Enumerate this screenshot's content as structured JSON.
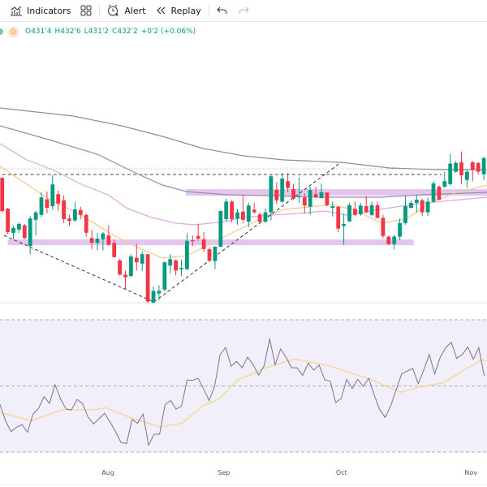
{
  "toolbar": {
    "indicators_label": "Indicators",
    "alert_label": "Alert",
    "replay_label": "Replay",
    "icons": [
      "indicators-icon",
      "layout-grid-icon",
      "alert-clock-icon",
      "replay-rewind-icon",
      "undo-icon",
      "redo-icon"
    ]
  },
  "legend": {
    "interval": "D",
    "open": "O431'4",
    "high": "H432'6",
    "low": "L431'2",
    "close": "C432'2",
    "change": "+0'2 (+0.06%)"
  },
  "colors": {
    "up": "#089981",
    "down": "#f23645",
    "ma_long": "#8f8f8f",
    "ma_mid": "#9c8aa8",
    "ma_short": "#dba9e3",
    "ma_fast": "#f3c98e",
    "zone": "#d9b3ea",
    "rsi": "#7d7198",
    "rsi_ma": "#f2dba0",
    "rsi_bg": "#f1eff9"
  },
  "x_axis": {
    "labels": [
      {
        "label": "Aug",
        "bar": 18.9
      },
      {
        "label": "Sep",
        "bar": 39.6
      },
      {
        "label": "Oct",
        "bar": 60.6
      },
      {
        "label": "Nov",
        "bar": 83.7
      }
    ]
  },
  "chart_data": [
    {
      "type": "candlestick",
      "candles": [
        [
          428.7,
          428.9,
          418.1,
          418.5
        ],
        [
          419.2,
          419.5,
          411.5,
          412.0
        ],
        [
          411.8,
          413.9,
          409.8,
          413.3
        ],
        [
          412.8,
          415.0,
          411.8,
          414.5
        ],
        [
          414.1,
          414.5,
          409.8,
          410.2
        ],
        [
          407.7,
          417.0,
          405.2,
          416.2
        ],
        [
          415.8,
          418.5,
          411.0,
          418.1
        ],
        [
          417.3,
          424.3,
          416.7,
          422.7
        ],
        [
          422.1,
          424.5,
          417.8,
          419.5
        ],
        [
          420.0,
          429.5,
          418.9,
          426.7
        ],
        [
          423.7,
          424.8,
          418.5,
          420.8
        ],
        [
          421.8,
          423.3,
          414.8,
          416.0
        ],
        [
          416.2,
          417.3,
          413.9,
          415.5
        ],
        [
          415.6,
          421.4,
          415.2,
          419.0
        ],
        [
          418.8,
          419.8,
          416.0,
          417.3
        ],
        [
          417.3,
          417.7,
          410.6,
          411.8
        ],
        [
          410.2,
          412.7,
          406.8,
          408.7
        ],
        [
          408.7,
          411.8,
          406.4,
          410.0
        ],
        [
          409.8,
          412.0,
          406.4,
          411.6
        ],
        [
          411.0,
          414.1,
          407.8,
          408.1
        ],
        [
          408.7,
          409.8,
          404.2,
          404.3
        ],
        [
          403.3,
          403.7,
          398.7,
          398.9
        ],
        [
          398.9,
          400.2,
          394.3,
          398.1
        ],
        [
          398.5,
          405.2,
          398.1,
          404.5
        ],
        [
          404.1,
          408.5,
          400.2,
          402.7
        ],
        [
          402.3,
          406.0,
          400.0,
          405.2
        ],
        [
          405.2,
          405.3,
          390.3,
          390.6
        ],
        [
          390.3,
          395.2,
          390.2,
          393.9
        ],
        [
          393.1,
          395.6,
          391.0,
          393.9
        ],
        [
          394.3,
          403.1,
          393.9,
          402.7
        ],
        [
          401.7,
          405.2,
          399.3,
          403.7
        ],
        [
          403.3,
          403.5,
          398.7,
          400.2
        ],
        [
          400.6,
          403.5,
          398.5,
          401.0
        ],
        [
          400.6,
          411.7,
          400.3,
          409.3
        ],
        [
          409.5,
          411.0,
          407.7,
          409.2
        ],
        [
          410.8,
          414.6,
          409.3,
          410.0
        ],
        [
          409.8,
          412.0,
          406.0,
          406.8
        ],
        [
          406.7,
          407.3,
          402.8,
          403.3
        ],
        [
          403.1,
          407.7,
          400.6,
          407.5
        ],
        [
          407.5,
          418.7,
          407.5,
          418.5
        ],
        [
          416.0,
          422.3,
          415.2,
          421.4
        ],
        [
          421.4,
          421.8,
          415.0,
          416.0
        ],
        [
          416.2,
          419.2,
          414.3,
          418.1
        ],
        [
          418.3,
          423.5,
          414.8,
          415.8
        ],
        [
          415.2,
          421.0,
          413.5,
          420.2
        ],
        [
          418.9,
          421.0,
          417.7,
          418.1
        ],
        [
          417.5,
          418.1,
          414.8,
          415.2
        ],
        [
          415.2,
          419.3,
          414.8,
          418.1
        ],
        [
          418.1,
          429.5,
          415.6,
          429.2
        ],
        [
          425.0,
          427.3,
          420.6,
          421.8
        ],
        [
          421.4,
          430.2,
          421.0,
          428.5
        ],
        [
          427.7,
          430.2,
          424.3,
          425.6
        ],
        [
          425.3,
          426.8,
          422.0,
          422.3
        ],
        [
          422.7,
          428.9,
          421.0,
          423.1
        ],
        [
          422.7,
          423.9,
          417.7,
          420.2
        ],
        [
          419.8,
          426.0,
          417.3,
          425.0
        ],
        [
          423.7,
          426.0,
          422.5,
          422.7
        ],
        [
          422.5,
          427.0,
          422.3,
          424.3
        ],
        [
          424.2,
          424.3,
          420.0,
          420.3
        ],
        [
          419.5,
          421.4,
          416.8,
          420.0
        ],
        [
          419.8,
          420.0,
          412.0,
          413.1
        ],
        [
          413.9,
          417.7,
          408.1,
          414.5
        ],
        [
          415.3,
          421.0,
          415.2,
          420.3
        ],
        [
          419.2,
          421.4,
          417.0,
          417.3
        ],
        [
          417.5,
          421.0,
          417.0,
          420.2
        ],
        [
          420.0,
          423.1,
          417.7,
          418.1
        ],
        [
          417.3,
          421.4,
          417.0,
          420.3
        ],
        [
          420.3,
          421.4,
          416.2,
          416.4
        ],
        [
          416.4,
          417.3,
          410.2,
          410.8
        ],
        [
          410.6,
          411.0,
          408.1,
          408.3
        ],
        [
          408.3,
          411.2,
          406.7,
          410.6
        ],
        [
          410.6,
          416.2,
          409.5,
          414.8
        ],
        [
          414.8,
          423.3,
          414.3,
          420.0
        ],
        [
          419.5,
          421.8,
          419.3,
          421.0
        ],
        [
          421.0,
          423.5,
          418.1,
          422.0
        ],
        [
          421.8,
          422.3,
          417.0,
          418.1
        ],
        [
          418.1,
          422.7,
          417.0,
          421.4
        ],
        [
          421.4,
          427.7,
          421.0,
          427.0
        ],
        [
          426.0,
          426.4,
          421.8,
          422.0
        ],
        [
          426.0,
          430.6,
          425.6,
          427.7
        ],
        [
          426.8,
          436.0,
          426.4,
          433.1
        ],
        [
          430.6,
          433.9,
          430.3,
          433.3
        ],
        [
          433.5,
          436.8,
          426.8,
          429.5
        ],
        [
          428.1,
          431.4,
          425.6,
          430.6
        ],
        [
          433.5,
          433.9,
          427.7,
          431.2
        ],
        [
          433.3,
          433.5,
          429.8,
          430.6
        ],
        [
          429.8,
          435.3,
          428.1,
          434.8
        ],
        [
          434.3,
          434.9,
          427.0,
          429.3
        ]
      ],
      "candle_format": [
        "open",
        "high",
        "low",
        "close"
      ],
      "moving_averages": [
        {
          "key": "ma_long",
          "points": [
            [
              -0.4,
              450.25
            ],
            [
              12.7,
              447.75
            ],
            [
              21.3,
              444.75
            ],
            [
              28.6,
              441.5
            ],
            [
              35.9,
              437.75
            ],
            [
              43.1,
              435.5
            ],
            [
              50.3,
              434.25
            ],
            [
              60.5,
              433.5
            ],
            [
              69.2,
              431.75
            ],
            [
              77.9,
              431.25
            ],
            [
              86.6,
              431.25
            ]
          ]
        },
        {
          "key": "ma_mid",
          "points": [
            [
              -0.4,
              444.75
            ],
            [
              8.3,
              440.5
            ],
            [
              17.0,
              436.0
            ],
            [
              23.5,
              430.5
            ],
            [
              28.6,
              426.5
            ],
            [
              32.9,
              424.5
            ],
            [
              40.2,
              423.5
            ],
            [
              47.4,
              423.25
            ],
            [
              57.6,
              422.75
            ],
            [
              67.7,
              422.75
            ],
            [
              75.0,
              423.5
            ],
            [
              86.6,
              424.25
            ]
          ]
        },
        {
          "key": "ma_short",
          "points": [
            [
              -0.4,
              439.25
            ],
            [
              4.4,
              434.25
            ],
            [
              9.3,
              431.0
            ],
            [
              14.1,
              426.75
            ],
            [
              18.9,
              423.5
            ],
            [
              22.4,
              419.25
            ],
            [
              26.7,
              416.5
            ],
            [
              31.1,
              414.75
            ],
            [
              34.4,
              414.25
            ],
            [
              39.8,
              415.25
            ],
            [
              43.1,
              416.5
            ],
            [
              47.9,
              417.25
            ],
            [
              52.8,
              417.75
            ],
            [
              57.6,
              418.5
            ],
            [
              61.5,
              417.25
            ],
            [
              67.3,
              419.0
            ],
            [
              75.4,
              421.0
            ],
            [
              86.6,
              422.75
            ]
          ]
        },
        {
          "key": "ma_fast",
          "points": [
            [
              -0.4,
              432.25
            ],
            [
              3.96,
              427.25
            ],
            [
              8.3,
              422.25
            ],
            [
              14.1,
              417.25
            ],
            [
              19.9,
              411.0
            ],
            [
              24.3,
              407.25
            ],
            [
              28.6,
              404.0
            ],
            [
              32.9,
              404.75
            ],
            [
              37.3,
              408.5
            ],
            [
              41.6,
              412.25
            ],
            [
              46.0,
              416.0
            ],
            [
              50.3,
              419.0
            ],
            [
              54.7,
              419.75
            ],
            [
              59.0,
              420.5
            ],
            [
              63.4,
              418.5
            ],
            [
              67.7,
              414.75
            ],
            [
              72.1,
              416.0
            ],
            [
              76.4,
              421.0
            ],
            [
              80.8,
              424.0
            ],
            [
              86.6,
              426.5
            ]
          ]
        }
      ],
      "drawings": {
        "price_line": 431.5,
        "resistance_dashed": {
          "price": 429.75,
          "from_bar": -1,
          "to_bar": 78.5
        },
        "zones": [
          {
            "from_bar": 32.8,
            "to_bar": 87.5,
            "top": 425.25,
            "bottom": 423.25
          },
          {
            "from_bar": 1.0,
            "to_bar": 73.5,
            "top": 409.75,
            "bottom": 408.0
          }
        ],
        "trendlines": [
          [
            [
              0.3,
              411.0
            ],
            [
              27.1,
              390.5
            ]
          ],
          [
            [
              27.1,
              390.5
            ],
            [
              60.5,
              433.5
            ]
          ]
        ]
      }
    },
    {
      "type": "line",
      "levels": [
        70,
        50,
        30
      ],
      "rsi": [
        44.4,
        39.5,
        36.2,
        37.5,
        38.3,
        36.0,
        41.5,
        43.2,
        46.8,
        44.7,
        50.4,
        46.1,
        43.0,
        42.8,
        45.9,
        44.7,
        40.6,
        38.5,
        40.1,
        41.7,
        39.1,
        36.2,
        32.9,
        32.6,
        39.9,
        38.7,
        41.5,
        32.1,
        35.4,
        35.4,
        44.4,
        45.6,
        43.0,
        44.0,
        51.8,
        51.7,
        52.3,
        49.1,
        45.6,
        49.9,
        59.5,
        61.6,
        56.0,
        57.4,
        55.5,
        58.7,
        56.4,
        53.3,
        56.1,
        64.3,
        56.4,
        61.2,
        58.6,
        55.5,
        55.5,
        53.2,
        56.9,
        54.8,
        56.3,
        51.9,
        51.4,
        45.0,
        46.2,
        52.0,
        49.2,
        52.0,
        49.9,
        52.3,
        47.3,
        42.8,
        40.5,
        44.0,
        48.9,
        53.7,
        54.5,
        55.3,
        50.7,
        54.8,
        59.5,
        53.7,
        58.7,
        61.6,
        63.2,
        58.3,
        59.5,
        61.8,
        58.1,
        61.6,
        53.0
      ],
      "rsi_ma": [
        [
          0,
          42.0
        ],
        [
          5.7,
          39.5
        ],
        [
          11.4,
          42.8
        ],
        [
          17,
          42.8
        ],
        [
          19.3,
          43.4
        ],
        [
          23.9,
          40.3
        ],
        [
          29,
          37.6
        ],
        [
          33,
          38.7
        ],
        [
          36.9,
          44.0
        ],
        [
          39.8,
          46.1
        ],
        [
          43.2,
          51.8
        ],
        [
          48.3,
          55.5
        ],
        [
          53.4,
          58.1
        ],
        [
          59.1,
          56.4
        ],
        [
          67,
          52.2
        ],
        [
          72.7,
          48.1
        ],
        [
          76.1,
          49.6
        ],
        [
          80.7,
          51.0
        ],
        [
          84.1,
          54.6
        ],
        [
          87.5,
          57.9
        ],
        [
          89,
          57.5
        ]
      ]
    }
  ]
}
